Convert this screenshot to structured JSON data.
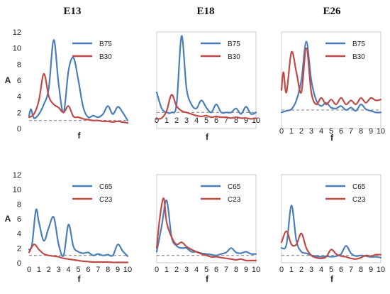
{
  "figure": {
    "columns": [
      "E13",
      "E18",
      "E26"
    ],
    "ylabel": "A",
    "xlabel": "f"
  },
  "colors": {
    "blue": "#4a7ebb",
    "red": "#be4b48",
    "reference": "#8c8c8c",
    "frame": "#bfbfbf"
  },
  "chart_data": [
    {
      "type": "line",
      "panel": "E13 top",
      "column_title": "E13",
      "ylabel": "A",
      "xlabel": "f",
      "xlim": [
        0,
        10
      ],
      "ylim": [
        0,
        12
      ],
      "xticks": [],
      "yticks": [
        0,
        2,
        4,
        6,
        8,
        10,
        12
      ],
      "reference_line": 1,
      "legend_position": "top-right",
      "series": [
        {
          "name": "B75",
          "color": "#4a7ebb",
          "x": [
            0,
            0.2,
            0.5,
            1,
            1.5,
            2,
            2.5,
            3,
            3.5,
            4,
            4.5,
            5,
            5.5,
            6,
            6.5,
            7,
            7.5,
            8,
            8.5,
            9,
            9.5,
            10
          ],
          "y": [
            1.6,
            2.4,
            1.3,
            1.8,
            3.0,
            5.0,
            11.0,
            5.5,
            2.0,
            7.2,
            8.8,
            6.0,
            2.6,
            1.4,
            1.6,
            1.4,
            1.8,
            2.8,
            1.8,
            2.7,
            2.0,
            1.0
          ]
        },
        {
          "name": "B30",
          "color": "#be4b48",
          "x": [
            0,
            0.5,
            1,
            1.5,
            2,
            2.5,
            3,
            3.5,
            4,
            4.5,
            5,
            5.5,
            6,
            6.5,
            7,
            7.5,
            8,
            8.5,
            9,
            9.5,
            10
          ],
          "y": [
            1.4,
            1.8,
            3.5,
            6.8,
            4.0,
            3.0,
            2.6,
            2.0,
            2.8,
            1.5,
            1.4,
            1.2,
            1.1,
            1.0,
            1.0,
            0.9,
            0.9,
            0.8,
            0.9,
            0.8,
            0.7
          ]
        }
      ]
    },
    {
      "type": "line",
      "panel": "E18 top",
      "column_title": "E18",
      "ylabel": "",
      "xlabel": "f",
      "xlim": [
        0,
        10
      ],
      "ylim": [
        0,
        12
      ],
      "xticks": [
        0,
        1,
        2,
        3,
        4,
        5,
        6,
        7,
        8,
        9,
        10
      ],
      "yticks": [],
      "reference_line": 2,
      "legend_position": "top-right",
      "series": [
        {
          "name": "B75",
          "color": "#4a7ebb",
          "x": [
            0,
            0.5,
            1,
            1.5,
            2,
            2.5,
            3,
            3.5,
            4,
            4.5,
            5,
            5.5,
            6,
            6.5,
            7,
            7.5,
            8,
            8.5,
            9,
            9.5,
            10
          ],
          "y": [
            4.5,
            2.5,
            2.0,
            2.0,
            3.0,
            11.5,
            5.0,
            3.0,
            2.5,
            3.5,
            2.6,
            2.0,
            3.0,
            2.0,
            2.0,
            2.0,
            2.5,
            1.8,
            2.7,
            1.8,
            2.0
          ]
        },
        {
          "name": "B30",
          "color": "#be4b48",
          "x": [
            0,
            0.5,
            1,
            1.5,
            2,
            2.5,
            3,
            3.5,
            4,
            4.5,
            5,
            5.5,
            6,
            6.5,
            7,
            7.5,
            8,
            8.5,
            9,
            9.5,
            10
          ],
          "y": [
            1.2,
            1.3,
            2.2,
            4.2,
            2.8,
            2.2,
            2.0,
            1.8,
            1.6,
            1.5,
            1.6,
            1.4,
            1.5,
            1.4,
            1.4,
            1.3,
            1.4,
            1.3,
            1.3,
            1.2,
            1.3
          ]
        }
      ]
    },
    {
      "type": "line",
      "panel": "E26 top",
      "column_title": "E26",
      "ylabel": "",
      "xlabel": "f",
      "xlim": [
        0,
        10
      ],
      "ylim": [
        0,
        12
      ],
      "xticks": [
        0,
        1,
        2,
        3,
        4,
        5,
        6,
        7,
        8,
        9,
        10
      ],
      "yticks": [],
      "reference_line": 2.3,
      "legend_position": "top-right",
      "series": [
        {
          "name": "B75",
          "color": "#4a7ebb",
          "x": [
            0,
            0.5,
            1,
            1.5,
            2,
            2.5,
            3,
            3.5,
            4,
            4.5,
            5,
            5.5,
            6,
            6.5,
            7,
            7.5,
            8,
            8.5,
            9,
            9.5,
            10
          ],
          "y": [
            2.0,
            2.2,
            2.4,
            3.5,
            6.0,
            10.8,
            6.0,
            3.5,
            2.8,
            3.2,
            2.6,
            2.5,
            2.8,
            2.3,
            2.6,
            2.2,
            3.0,
            2.4,
            2.2,
            2.0,
            2.0
          ]
        },
        {
          "name": "B30",
          "color": "#be4b48",
          "x": [
            0,
            0.2,
            0.5,
            1,
            1.5,
            2,
            2.5,
            3,
            3.5,
            4,
            4.5,
            5,
            5.5,
            6,
            6.5,
            7,
            7.5,
            8,
            8.5,
            9,
            9.5,
            10
          ],
          "y": [
            4.8,
            7.0,
            4.5,
            9.5,
            7.0,
            4.5,
            10.0,
            4.5,
            3.0,
            3.8,
            3.0,
            3.6,
            3.0,
            3.8,
            3.0,
            3.5,
            3.0,
            3.8,
            3.2,
            3.8,
            3.5,
            3.6
          ]
        }
      ]
    },
    {
      "type": "line",
      "panel": "E13 bottom",
      "column_title": "",
      "ylabel": "A",
      "xlabel": "f",
      "xlim": [
        0,
        10
      ],
      "ylim": [
        0,
        12
      ],
      "xticks": [
        0,
        1,
        2,
        3,
        4,
        5,
        6,
        7,
        8,
        9,
        10
      ],
      "yticks": [
        0,
        2,
        4,
        6,
        8,
        10,
        12
      ],
      "reference_line": 1,
      "legend_position": "top-right",
      "series": [
        {
          "name": "C65",
          "color": "#4a7ebb",
          "x": [
            0,
            0.3,
            0.7,
            1,
            1.5,
            2,
            2.5,
            3,
            3.5,
            4,
            4.5,
            5,
            5.5,
            6,
            6.5,
            7,
            7.5,
            8,
            8.5,
            9,
            9.5,
            10
          ],
          "y": [
            1.8,
            2.5,
            7.2,
            5.5,
            3.0,
            4.8,
            6.2,
            2.5,
            1.0,
            5.2,
            2.2,
            1.5,
            1.3,
            1.4,
            1.0,
            1.2,
            1.0,
            1.1,
            1.0,
            2.5,
            1.6,
            0.9
          ]
        },
        {
          "name": "C23",
          "color": "#be4b48",
          "x": [
            0,
            0.5,
            1,
            1.5,
            2,
            2.5,
            3,
            3.5,
            4,
            4.5,
            5,
            5.5,
            6,
            6.5,
            7,
            7.5,
            8,
            8.5,
            9,
            9.5,
            10
          ],
          "y": [
            1.4,
            2.5,
            1.8,
            1.2,
            1.0,
            0.9,
            0.8,
            0.6,
            0.5,
            0.4,
            0.3,
            0.2,
            0.15,
            0.1,
            0.1,
            0.1,
            0.1,
            0.05,
            0.05,
            0.05,
            0.05
          ]
        }
      ]
    },
    {
      "type": "line",
      "panel": "E18 bottom",
      "column_title": "",
      "ylabel": "",
      "xlabel": "f",
      "xlim": [
        0,
        10
      ],
      "ylim": [
        0,
        12
      ],
      "xticks": [
        0,
        1,
        2,
        3,
        4,
        5,
        6,
        7,
        8,
        9,
        10
      ],
      "yticks": [],
      "reference_line": 1,
      "legend_position": "top-right",
      "series": [
        {
          "name": "C65",
          "color": "#4a7ebb",
          "x": [
            0,
            0.5,
            1,
            1.5,
            2,
            2.5,
            3,
            3.5,
            4,
            4.5,
            5,
            5.5,
            6,
            6.5,
            7,
            7.5,
            8,
            8.5,
            9,
            9.5,
            10
          ],
          "y": [
            1.5,
            5.0,
            8.5,
            3.5,
            2.3,
            2.0,
            2.0,
            1.5,
            1.5,
            1.3,
            1.2,
            1.1,
            1.0,
            1.2,
            1.4,
            2.0,
            1.4,
            1.3,
            1.5,
            1.2,
            1.2
          ]
        },
        {
          "name": "C23",
          "color": "#be4b48",
          "x": [
            0,
            0.3,
            0.7,
            1,
            1.5,
            2,
            2.5,
            3,
            3.5,
            4,
            4.5,
            5,
            5.5,
            6,
            6.5,
            7,
            7.5,
            8,
            8.5,
            9,
            9.5,
            10
          ],
          "y": [
            2.0,
            6.0,
            8.8,
            5.5,
            3.5,
            2.5,
            2.8,
            2.2,
            1.8,
            1.5,
            1.2,
            1.0,
            0.8,
            0.8,
            0.7,
            0.6,
            0.5,
            0.4,
            0.5,
            0.3,
            0.3,
            0.3
          ]
        }
      ]
    },
    {
      "type": "line",
      "panel": "E26 bottom",
      "column_title": "",
      "ylabel": "",
      "xlabel": "f",
      "xlim": [
        0,
        10
      ],
      "ylim": [
        0,
        12
      ],
      "xticks": [
        0,
        1,
        2,
        3,
        4,
        5,
        6,
        7,
        8,
        9,
        10
      ],
      "yticks": [],
      "reference_line": 1,
      "legend_position": "top-right",
      "series": [
        {
          "name": "C65",
          "color": "#4a7ebb",
          "x": [
            0,
            0.5,
            1,
            1.5,
            2,
            2.5,
            3,
            3.5,
            4,
            4.5,
            5,
            5.5,
            6,
            6.5,
            7,
            7.5,
            8,
            8.5,
            9,
            9.5,
            10
          ],
          "y": [
            2.0,
            2.5,
            7.8,
            3.0,
            1.5,
            1.3,
            1.0,
            0.9,
            0.8,
            0.9,
            0.8,
            0.9,
            1.2,
            2.3,
            1.3,
            0.9,
            1.0,
            0.9,
            0.8,
            0.8,
            0.7
          ]
        },
        {
          "name": "C23",
          "color": "#be4b48",
          "x": [
            0,
            0.5,
            1,
            1.5,
            2,
            2.5,
            3,
            3.5,
            4,
            4.5,
            5,
            5.5,
            6,
            6.5,
            7,
            7.5,
            8,
            8.5,
            9,
            9.5,
            10
          ],
          "y": [
            2.8,
            4.3,
            2.5,
            2.5,
            4.0,
            2.0,
            1.0,
            0.7,
            0.6,
            0.8,
            1.8,
            1.2,
            0.9,
            0.8,
            0.6,
            0.5,
            0.7,
            1.0,
            0.9,
            1.1,
            1.1
          ]
        }
      ]
    }
  ]
}
